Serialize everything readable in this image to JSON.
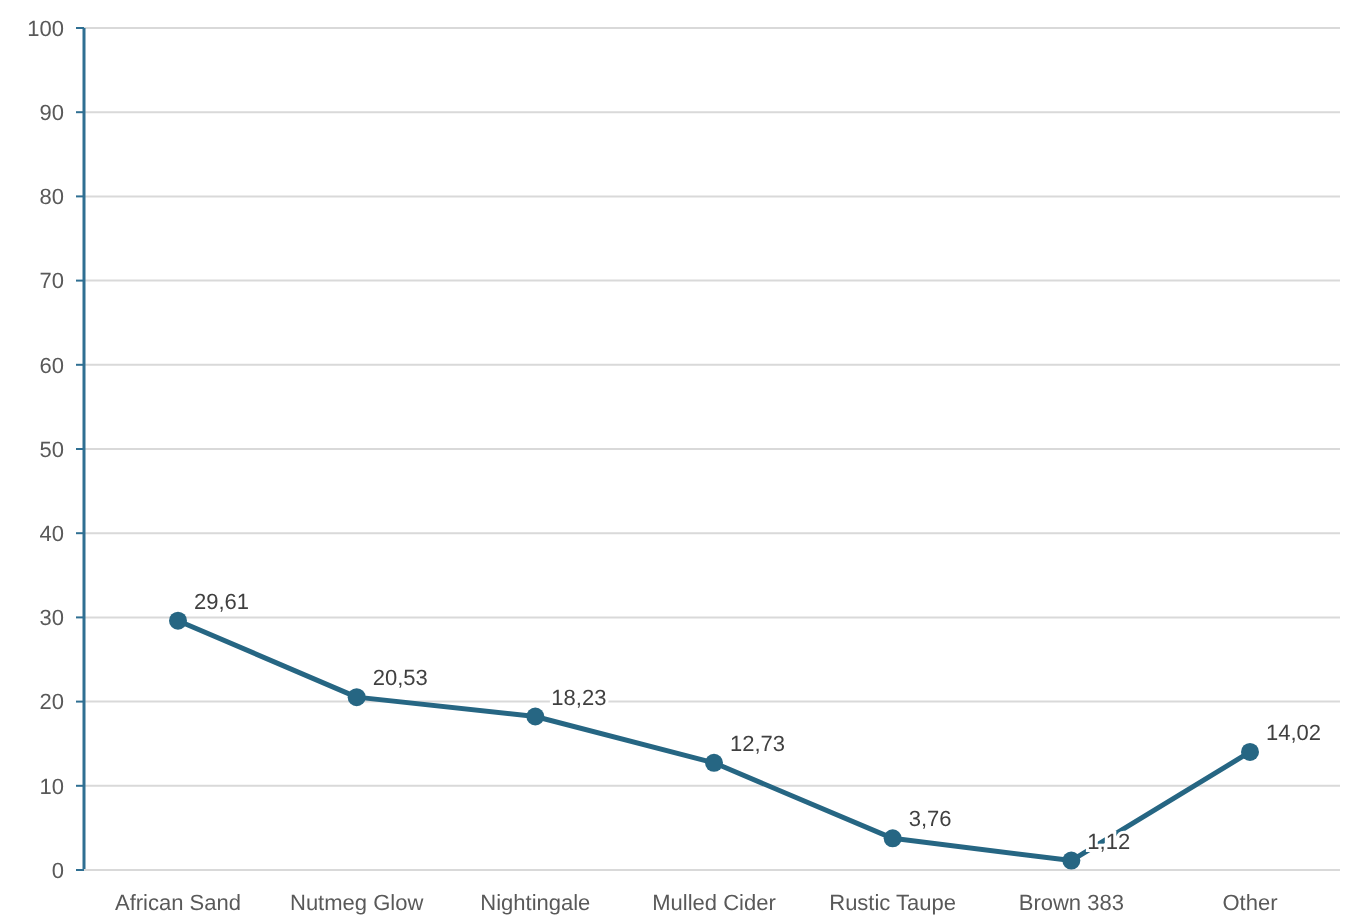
{
  "chart_data": {
    "type": "line",
    "categories": [
      "African Sand",
      "Nutmeg Glow",
      "Nightingale",
      "Mulled Cider",
      "Rustic Taupe",
      "Brown 383",
      "Other"
    ],
    "series": [
      {
        "color": "#266683",
        "values": [
          29.61,
          20.53,
          18.23,
          12.73,
          3.76,
          1.12,
          14.02
        ],
        "value_labels": [
          "29,61",
          "20,53",
          "18,23",
          "12,73",
          "3,76",
          "1,12",
          "14,02"
        ]
      }
    ],
    "ylim": [
      0,
      100
    ],
    "yticks": [
      0,
      10,
      20,
      30,
      40,
      50,
      60,
      70,
      80,
      90,
      100
    ],
    "grid": "y",
    "marker": "circle",
    "line_style": "solid"
  }
}
